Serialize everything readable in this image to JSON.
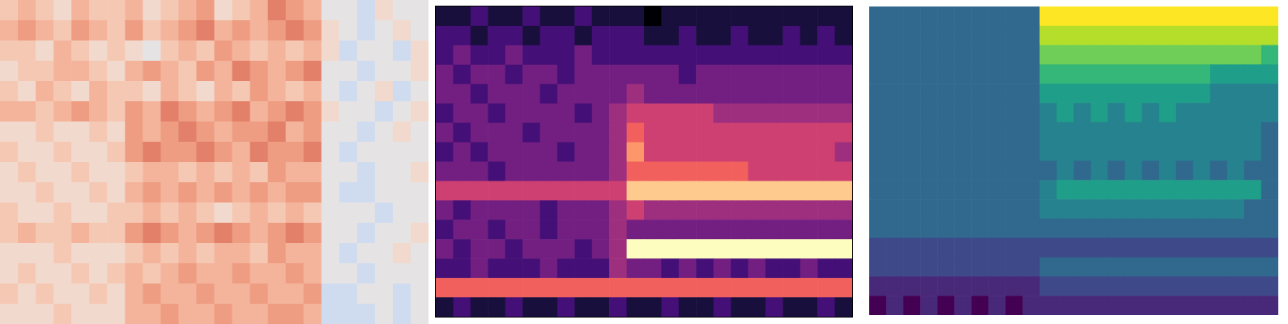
{
  "chart_data": [
    {
      "type": "heatmap",
      "tick_labels": false,
      "color": "coolwarm",
      "cells": [
        [
          4,
          5,
          4,
          3,
          5,
          4,
          4,
          5,
          3,
          4,
          5,
          6,
          3,
          4,
          5,
          7,
          6,
          5,
          2,
          2,
          1,
          3,
          2,
          2
        ],
        [
          5,
          6,
          5,
          4,
          6,
          5,
          4,
          6,
          4,
          5,
          6,
          7,
          5,
          6,
          5,
          6,
          7,
          6,
          3,
          2,
          1,
          2,
          3,
          2
        ],
        [
          4,
          4,
          3,
          5,
          4,
          3,
          4,
          3,
          2,
          4,
          5,
          4,
          6,
          5,
          4,
          5,
          4,
          5,
          3,
          1,
          2,
          2,
          1,
          3
        ],
        [
          3,
          4,
          4,
          5,
          5,
          4,
          3,
          5,
          6,
          5,
          4,
          6,
          5,
          7,
          6,
          5,
          6,
          7,
          2,
          2,
          1,
          2,
          2,
          3
        ],
        [
          4,
          3,
          5,
          4,
          3,
          5,
          4,
          4,
          3,
          5,
          4,
          3,
          5,
          4,
          6,
          5,
          4,
          5,
          2,
          1,
          2,
          3,
          1,
          2
        ],
        [
          5,
          5,
          4,
          5,
          6,
          5,
          4,
          6,
          5,
          7,
          6,
          5,
          6,
          7,
          5,
          6,
          7,
          6,
          3,
          2,
          2,
          1,
          2,
          3
        ],
        [
          3,
          3,
          4,
          3,
          3,
          4,
          3,
          6,
          5,
          6,
          7,
          6,
          5,
          6,
          6,
          7,
          5,
          6,
          2,
          2,
          1,
          2,
          3,
          2
        ],
        [
          4,
          3,
          3,
          4,
          3,
          3,
          4,
          6,
          7,
          6,
          6,
          7,
          6,
          5,
          7,
          6,
          6,
          7,
          2,
          1,
          2,
          2,
          2,
          2
        ],
        [
          3,
          4,
          3,
          3,
          4,
          3,
          3,
          4,
          5,
          5,
          4,
          5,
          4,
          5,
          4,
          6,
          5,
          5,
          2,
          2,
          1,
          2,
          2,
          3
        ],
        [
          3,
          3,
          4,
          3,
          3,
          4,
          3,
          5,
          6,
          5,
          6,
          5,
          6,
          5,
          6,
          5,
          6,
          6,
          2,
          1,
          1,
          2,
          2,
          2
        ],
        [
          4,
          3,
          3,
          4,
          3,
          3,
          4,
          4,
          5,
          4,
          5,
          4,
          3,
          4,
          5,
          4,
          5,
          4,
          2,
          2,
          2,
          1,
          2,
          2
        ],
        [
          4,
          5,
          4,
          4,
          5,
          4,
          4,
          6,
          7,
          6,
          5,
          6,
          7,
          6,
          5,
          6,
          7,
          6,
          2,
          2,
          1,
          2,
          2,
          3
        ],
        [
          3,
          3,
          3,
          4,
          3,
          3,
          3,
          4,
          5,
          4,
          5,
          4,
          5,
          5,
          4,
          6,
          5,
          5,
          2,
          1,
          2,
          2,
          3,
          2
        ],
        [
          3,
          4,
          3,
          3,
          4,
          3,
          4,
          5,
          4,
          5,
          6,
          5,
          5,
          6,
          5,
          5,
          6,
          5,
          2,
          2,
          1,
          2,
          2,
          2
        ],
        [
          4,
          3,
          4,
          3,
          3,
          4,
          3,
          5,
          6,
          5,
          5,
          6,
          5,
          5,
          6,
          5,
          5,
          6,
          1,
          1,
          2,
          2,
          1,
          2
        ],
        [
          3,
          3,
          3,
          4,
          3,
          3,
          3,
          5,
          5,
          6,
          5,
          5,
          6,
          5,
          5,
          6,
          6,
          5,
          1,
          1,
          1,
          2,
          1,
          2
        ]
      ]
    },
    {
      "type": "heatmap",
      "tick_labels": false,
      "color": "magma",
      "cells": [
        [
          1,
          1,
          2,
          1,
          1,
          2,
          1,
          1,
          2,
          1,
          1,
          1,
          0,
          1,
          1,
          1,
          1,
          1,
          1,
          1,
          1,
          1,
          1,
          1
        ],
        [
          2,
          2,
          1,
          2,
          2,
          1,
          2,
          2,
          1,
          2,
          2,
          2,
          1,
          1,
          2,
          1,
          1,
          2,
          1,
          1,
          2,
          1,
          2,
          1
        ],
        [
          2,
          3,
          2,
          2,
          3,
          2,
          2,
          2,
          3,
          2,
          2,
          2,
          2,
          2,
          2,
          2,
          2,
          2,
          2,
          2,
          2,
          2,
          2,
          2
        ],
        [
          3,
          2,
          3,
          3,
          2,
          3,
          3,
          2,
          3,
          3,
          3,
          3,
          3,
          3,
          2,
          3,
          3,
          3,
          3,
          3,
          3,
          3,
          3,
          3
        ],
        [
          3,
          3,
          2,
          3,
          3,
          3,
          2,
          3,
          3,
          3,
          3,
          4,
          3,
          3,
          3,
          3,
          3,
          3,
          3,
          3,
          3,
          3,
          3,
          3
        ],
        [
          2,
          3,
          3,
          2,
          3,
          3,
          3,
          3,
          2,
          3,
          4,
          5,
          5,
          5,
          5,
          5,
          4,
          4,
          4,
          4,
          4,
          4,
          4,
          4
        ],
        [
          3,
          2,
          3,
          3,
          3,
          2,
          3,
          3,
          3,
          3,
          4,
          6,
          5,
          5,
          5,
          5,
          5,
          5,
          5,
          5,
          5,
          5,
          5,
          5
        ],
        [
          2,
          3,
          2,
          3,
          3,
          3,
          3,
          2,
          3,
          3,
          4,
          7,
          5,
          5,
          5,
          5,
          5,
          5,
          5,
          5,
          5,
          5,
          5,
          4
        ],
        [
          3,
          3,
          3,
          2,
          3,
          3,
          3,
          3,
          3,
          3,
          4,
          6,
          6,
          6,
          6,
          6,
          6,
          6,
          5,
          5,
          5,
          5,
          5,
          5
        ],
        [
          5,
          5,
          5,
          5,
          5,
          5,
          5,
          5,
          5,
          5,
          5,
          8,
          8,
          8,
          8,
          8,
          8,
          8,
          8,
          8,
          8,
          8,
          8,
          8
        ],
        [
          3,
          2,
          3,
          3,
          3,
          3,
          2,
          3,
          3,
          3,
          4,
          5,
          4,
          4,
          4,
          4,
          4,
          4,
          4,
          4,
          4,
          4,
          4,
          4
        ],
        [
          2,
          3,
          3,
          2,
          3,
          3,
          2,
          3,
          3,
          3,
          4,
          3,
          3,
          3,
          3,
          3,
          3,
          3,
          3,
          3,
          3,
          3,
          3,
          3
        ],
        [
          3,
          2,
          3,
          3,
          2,
          3,
          3,
          3,
          2,
          3,
          4,
          9,
          9,
          9,
          9,
          9,
          9,
          9,
          9,
          9,
          9,
          9,
          9,
          9
        ],
        [
          2,
          2,
          3,
          2,
          2,
          2,
          3,
          2,
          2,
          2,
          4,
          3,
          3,
          2,
          3,
          2,
          3,
          2,
          3,
          2,
          2,
          3,
          2,
          2
        ],
        [
          6,
          6,
          6,
          6,
          6,
          6,
          6,
          6,
          6,
          6,
          6,
          6,
          6,
          6,
          6,
          6,
          6,
          6,
          6,
          6,
          6,
          6,
          6,
          6
        ],
        [
          1,
          2,
          1,
          1,
          2,
          1,
          1,
          2,
          1,
          1,
          2,
          1,
          1,
          2,
          1,
          1,
          2,
          1,
          1,
          2,
          1,
          1,
          2,
          1
        ]
      ]
    },
    {
      "type": "heatmap",
      "tick_labels": false,
      "color": "viridis",
      "cells": [
        [
          3,
          3,
          3,
          3,
          3,
          3,
          3,
          3,
          3,
          3,
          9,
          9,
          9,
          9,
          9,
          9,
          9,
          9,
          9,
          9,
          9,
          9,
          9,
          9
        ],
        [
          3,
          3,
          3,
          3,
          3,
          3,
          3,
          3,
          3,
          3,
          8,
          8,
          8,
          8,
          8,
          8,
          8,
          8,
          8,
          8,
          8,
          8,
          8,
          8
        ],
        [
          3,
          3,
          3,
          3,
          3,
          3,
          3,
          3,
          3,
          3,
          7,
          7,
          7,
          7,
          7,
          7,
          7,
          7,
          7,
          7,
          7,
          7,
          7,
          6
        ],
        [
          3,
          3,
          3,
          3,
          3,
          3,
          3,
          3,
          3,
          3,
          6,
          6,
          6,
          6,
          6,
          6,
          6,
          6,
          6,
          6,
          5,
          5,
          5,
          5
        ],
        [
          3,
          3,
          3,
          3,
          3,
          3,
          3,
          3,
          3,
          3,
          5,
          5,
          5,
          5,
          5,
          5,
          5,
          5,
          5,
          5,
          4,
          4,
          4,
          4
        ],
        [
          3,
          3,
          3,
          3,
          3,
          3,
          3,
          3,
          3,
          3,
          4,
          5,
          4,
          5,
          4,
          5,
          4,
          5,
          4,
          4,
          4,
          4,
          4,
          4
        ],
        [
          3,
          3,
          3,
          3,
          3,
          3,
          3,
          3,
          3,
          3,
          4,
          4,
          4,
          4,
          4,
          4,
          4,
          4,
          4,
          4,
          4,
          4,
          4,
          3
        ],
        [
          3,
          3,
          3,
          3,
          3,
          3,
          3,
          3,
          3,
          3,
          4,
          4,
          4,
          4,
          4,
          4,
          4,
          4,
          4,
          4,
          4,
          4,
          4,
          3
        ],
        [
          3,
          3,
          3,
          3,
          3,
          3,
          3,
          3,
          3,
          3,
          3,
          4,
          3,
          4,
          3,
          4,
          3,
          4,
          3,
          4,
          3,
          4,
          3,
          3
        ],
        [
          3,
          3,
          3,
          3,
          3,
          3,
          3,
          3,
          3,
          3,
          4,
          5,
          5,
          5,
          5,
          5,
          5,
          5,
          5,
          5,
          5,
          5,
          5,
          3
        ],
        [
          3,
          3,
          3,
          3,
          3,
          3,
          3,
          3,
          3,
          3,
          4,
          4,
          4,
          4,
          4,
          4,
          4,
          4,
          4,
          4,
          4,
          4,
          3,
          3
        ],
        [
          3,
          3,
          3,
          3,
          3,
          3,
          3,
          3,
          3,
          3,
          3,
          3,
          3,
          3,
          3,
          3,
          3,
          3,
          3,
          3,
          3,
          3,
          3,
          3
        ],
        [
          2,
          2,
          2,
          2,
          2,
          2,
          2,
          2,
          2,
          2,
          2,
          2,
          2,
          2,
          2,
          2,
          2,
          2,
          2,
          2,
          2,
          2,
          2,
          2
        ],
        [
          2,
          2,
          2,
          2,
          2,
          2,
          2,
          2,
          2,
          2,
          3,
          3,
          3,
          3,
          3,
          3,
          3,
          3,
          3,
          3,
          3,
          3,
          3,
          3
        ],
        [
          1,
          1,
          1,
          1,
          1,
          1,
          1,
          1,
          1,
          1,
          2,
          2,
          2,
          2,
          2,
          2,
          2,
          2,
          2,
          2,
          2,
          2,
          2,
          2
        ],
        [
          0,
          1,
          0,
          1,
          0,
          1,
          0,
          1,
          0,
          1,
          1,
          1,
          1,
          1,
          1,
          1,
          1,
          1,
          1,
          1,
          1,
          1,
          1,
          1
        ]
      ]
    }
  ]
}
